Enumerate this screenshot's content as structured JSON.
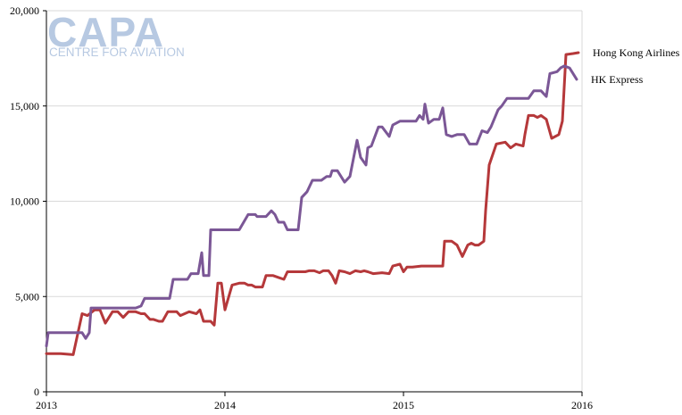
{
  "logo": {
    "main": "CAPA",
    "sub": "CENTRE FOR AVIATION"
  },
  "chart_data": {
    "type": "line",
    "title": "",
    "xlabel": "",
    "ylabel": "",
    "xlim": [
      2013,
      2016
    ],
    "ylim": [
      0,
      20000
    ],
    "x_ticks": [
      2013,
      2014,
      2015,
      2016
    ],
    "x_tick_labels": [
      "2013",
      "2014",
      "2015",
      "2016"
    ],
    "y_ticks": [
      0,
      5000,
      10000,
      15000,
      20000
    ],
    "y_tick_labels": [
      "0",
      "5,000",
      "10,000",
      "15,000",
      "20,000"
    ],
    "grid": "horizontal",
    "legend_placement": "right, labels at line ends",
    "series": [
      {
        "name": "Hong Kong Airlines",
        "color": "#b5383a",
        "points": [
          [
            2013.0,
            2000
          ],
          [
            2013.08,
            2000
          ],
          [
            2013.15,
            1950
          ],
          [
            2013.2,
            4100
          ],
          [
            2013.23,
            4000
          ],
          [
            2013.27,
            4300
          ],
          [
            2013.3,
            4300
          ],
          [
            2013.33,
            3600
          ],
          [
            2013.37,
            4200
          ],
          [
            2013.4,
            4200
          ],
          [
            2013.43,
            3900
          ],
          [
            2013.46,
            4200
          ],
          [
            2013.5,
            4200
          ],
          [
            2013.53,
            4100
          ],
          [
            2013.55,
            4100
          ],
          [
            2013.58,
            3800
          ],
          [
            2013.6,
            3800
          ],
          [
            2013.63,
            3700
          ],
          [
            2013.65,
            3700
          ],
          [
            2013.68,
            4200
          ],
          [
            2013.73,
            4200
          ],
          [
            2013.75,
            4000
          ],
          [
            2013.8,
            4200
          ],
          [
            2013.84,
            4100
          ],
          [
            2013.86,
            4300
          ],
          [
            2013.88,
            3700
          ],
          [
            2013.92,
            3700
          ],
          [
            2013.94,
            3500
          ],
          [
            2013.96,
            5700
          ],
          [
            2013.98,
            5700
          ],
          [
            2014.0,
            4300
          ],
          [
            2014.04,
            5600
          ],
          [
            2014.08,
            5700
          ],
          [
            2014.11,
            5700
          ],
          [
            2014.13,
            5600
          ],
          [
            2014.15,
            5600
          ],
          [
            2014.17,
            5500
          ],
          [
            2014.21,
            5500
          ],
          [
            2014.23,
            6100
          ],
          [
            2014.27,
            6100
          ],
          [
            2014.3,
            6000
          ],
          [
            2014.33,
            5900
          ],
          [
            2014.35,
            6300
          ],
          [
            2014.4,
            6300
          ],
          [
            2014.45,
            6300
          ],
          [
            2014.47,
            6350
          ],
          [
            2014.5,
            6350
          ],
          [
            2014.53,
            6250
          ],
          [
            2014.55,
            6350
          ],
          [
            2014.58,
            6350
          ],
          [
            2014.6,
            6100
          ],
          [
            2014.62,
            5700
          ],
          [
            2014.64,
            6350
          ],
          [
            2014.67,
            6300
          ],
          [
            2014.7,
            6200
          ],
          [
            2014.73,
            6350
          ],
          [
            2014.76,
            6300
          ],
          [
            2014.78,
            6350
          ],
          [
            2014.8,
            6300
          ],
          [
            2014.83,
            6200
          ],
          [
            2014.88,
            6250
          ],
          [
            2014.92,
            6200
          ],
          [
            2014.94,
            6600
          ],
          [
            2014.98,
            6700
          ],
          [
            2015.0,
            6300
          ],
          [
            2015.02,
            6550
          ],
          [
            2015.05,
            6550
          ],
          [
            2015.1,
            6600
          ],
          [
            2015.15,
            6600
          ],
          [
            2015.2,
            6600
          ],
          [
            2015.22,
            6600
          ],
          [
            2015.23,
            7900
          ],
          [
            2015.27,
            7900
          ],
          [
            2015.3,
            7700
          ],
          [
            2015.33,
            7100
          ],
          [
            2015.36,
            7700
          ],
          [
            2015.38,
            7800
          ],
          [
            2015.4,
            7700
          ],
          [
            2015.42,
            7700
          ],
          [
            2015.45,
            7900
          ],
          [
            2015.46,
            9500
          ],
          [
            2015.48,
            11900
          ],
          [
            2015.52,
            13000
          ],
          [
            2015.57,
            13100
          ],
          [
            2015.6,
            12800
          ],
          [
            2015.63,
            13000
          ],
          [
            2015.67,
            12900
          ],
          [
            2015.68,
            13500
          ],
          [
            2015.7,
            14500
          ],
          [
            2015.73,
            14500
          ],
          [
            2015.75,
            14400
          ],
          [
            2015.77,
            14500
          ],
          [
            2015.8,
            14300
          ],
          [
            2015.83,
            13300
          ],
          [
            2015.87,
            13500
          ],
          [
            2015.89,
            14200
          ],
          [
            2015.91,
            17700
          ],
          [
            2015.95,
            17750
          ],
          [
            2015.98,
            17800
          ]
        ]
      },
      {
        "name": "HK Express",
        "color": "#7b5796",
        "points": [
          [
            2013.0,
            2400
          ],
          [
            2013.01,
            3100
          ],
          [
            2013.08,
            3100
          ],
          [
            2013.15,
            3100
          ],
          [
            2013.2,
            3100
          ],
          [
            2013.22,
            2800
          ],
          [
            2013.24,
            3100
          ],
          [
            2013.25,
            4400
          ],
          [
            2013.3,
            4400
          ],
          [
            2013.35,
            4400
          ],
          [
            2013.4,
            4400
          ],
          [
            2013.45,
            4400
          ],
          [
            2013.5,
            4400
          ],
          [
            2013.53,
            4500
          ],
          [
            2013.55,
            4900
          ],
          [
            2013.6,
            4900
          ],
          [
            2013.65,
            4900
          ],
          [
            2013.69,
            4900
          ],
          [
            2013.71,
            5900
          ],
          [
            2013.75,
            5900
          ],
          [
            2013.79,
            5900
          ],
          [
            2013.81,
            6200
          ],
          [
            2013.85,
            6200
          ],
          [
            2013.87,
            7300
          ],
          [
            2013.88,
            6100
          ],
          [
            2013.91,
            6100
          ],
          [
            2013.92,
            8500
          ],
          [
            2013.96,
            8500
          ],
          [
            2014.0,
            8500
          ],
          [
            2014.04,
            8500
          ],
          [
            2014.08,
            8500
          ],
          [
            2014.13,
            9300
          ],
          [
            2014.17,
            9300
          ],
          [
            2014.18,
            9200
          ],
          [
            2014.23,
            9200
          ],
          [
            2014.26,
            9500
          ],
          [
            2014.28,
            9300
          ],
          [
            2014.3,
            8900
          ],
          [
            2014.33,
            8900
          ],
          [
            2014.35,
            8500
          ],
          [
            2014.37,
            8500
          ],
          [
            2014.41,
            8500
          ],
          [
            2014.43,
            10200
          ],
          [
            2014.46,
            10500
          ],
          [
            2014.49,
            11100
          ],
          [
            2014.54,
            11100
          ],
          [
            2014.57,
            11300
          ],
          [
            2014.59,
            11300
          ],
          [
            2014.6,
            11600
          ],
          [
            2014.63,
            11600
          ],
          [
            2014.67,
            11000
          ],
          [
            2014.7,
            11300
          ],
          [
            2014.74,
            13200
          ],
          [
            2014.76,
            12300
          ],
          [
            2014.79,
            11900
          ],
          [
            2014.8,
            12800
          ],
          [
            2014.82,
            12900
          ],
          [
            2014.86,
            13900
          ],
          [
            2014.88,
            13900
          ],
          [
            2014.92,
            13400
          ],
          [
            2014.94,
            14000
          ],
          [
            2014.98,
            14200
          ],
          [
            2015.02,
            14200
          ],
          [
            2015.07,
            14200
          ],
          [
            2015.09,
            14500
          ],
          [
            2015.11,
            14300
          ],
          [
            2015.12,
            15100
          ],
          [
            2015.14,
            14100
          ],
          [
            2015.17,
            14300
          ],
          [
            2015.2,
            14300
          ],
          [
            2015.22,
            14900
          ],
          [
            2015.24,
            13500
          ],
          [
            2015.27,
            13400
          ],
          [
            2015.3,
            13500
          ],
          [
            2015.34,
            13500
          ],
          [
            2015.37,
            13000
          ],
          [
            2015.41,
            13000
          ],
          [
            2015.44,
            13700
          ],
          [
            2015.47,
            13600
          ],
          [
            2015.49,
            13900
          ],
          [
            2015.53,
            14800
          ],
          [
            2015.55,
            15000
          ],
          [
            2015.58,
            15400
          ],
          [
            2015.62,
            15400
          ],
          [
            2015.67,
            15400
          ],
          [
            2015.7,
            15400
          ],
          [
            2015.73,
            15800
          ],
          [
            2015.77,
            15800
          ],
          [
            2015.8,
            15500
          ],
          [
            2015.82,
            16700
          ],
          [
            2015.86,
            16800
          ],
          [
            2015.88,
            17000
          ],
          [
            2015.9,
            17100
          ],
          [
            2015.93,
            17000
          ],
          [
            2015.97,
            16400
          ]
        ]
      }
    ]
  }
}
